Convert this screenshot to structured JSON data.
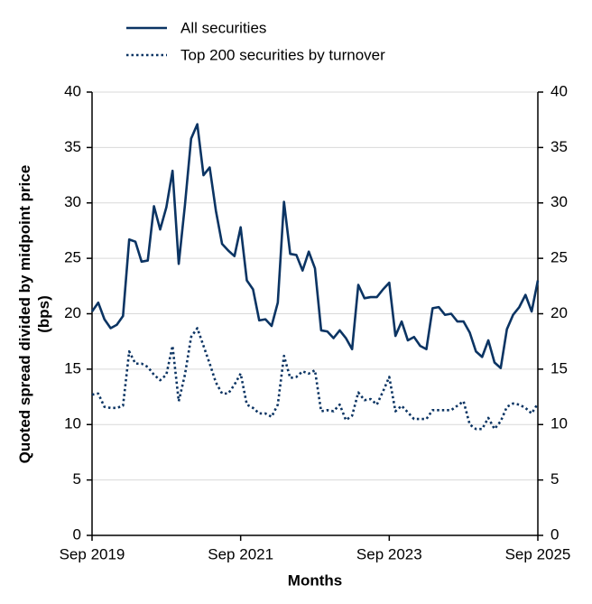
{
  "chart_data": {
    "type": "line",
    "x_label": "Months",
    "y_label": "Quoted spread divided by midpoint price (bps)",
    "categories": [
      "Sep 2019",
      null,
      null,
      null,
      null,
      null,
      null,
      null,
      null,
      null,
      null,
      null,
      null,
      null,
      null,
      null,
      null,
      null,
      null,
      null,
      null,
      null,
      null,
      null,
      "Sep 2021",
      null,
      null,
      null,
      null,
      null,
      null,
      null,
      null,
      null,
      null,
      null,
      null,
      null,
      null,
      null,
      null,
      null,
      null,
      null,
      null,
      null,
      null,
      null,
      "Sep 2023",
      null,
      null,
      null,
      null,
      null,
      null,
      null,
      null,
      null,
      null,
      null,
      null,
      null,
      null,
      null,
      null,
      null,
      null,
      null,
      null,
      null,
      null,
      null,
      "Sep 2025"
    ],
    "series": [
      {
        "name": "All securities",
        "color": "#0b3463",
        "line_style": "solid",
        "values": [
          20.2,
          21.0,
          19.5,
          18.7,
          19.0,
          19.8,
          26.7,
          26.5,
          24.7,
          24.8,
          29.7,
          27.6,
          29.6,
          32.9,
          24.5,
          29.8,
          35.8,
          37.1,
          32.5,
          33.2,
          29.3,
          26.3,
          25.7,
          25.2,
          27.8,
          23.0,
          22.2,
          19.4,
          19.5,
          18.9,
          21.0,
          30.1,
          25.4,
          25.3,
          23.9,
          25.6,
          24.1,
          18.5,
          18.4,
          17.8,
          18.5,
          17.8,
          16.8,
          22.6,
          21.4,
          21.5,
          21.5,
          22.2,
          22.8,
          18.0,
          19.3,
          17.6,
          17.9,
          17.1,
          16.8,
          20.5,
          20.6,
          19.9,
          20.0,
          19.3,
          19.3,
          18.3,
          16.6,
          16.1,
          17.6,
          15.6,
          15.1,
          18.6,
          19.9,
          20.6,
          21.7,
          20.2,
          23.0
        ]
      },
      {
        "name": "Top 200 securities by turnover",
        "color": "#0b3463",
        "line_style": "dotted",
        "values": [
          12.7,
          12.8,
          11.6,
          11.5,
          11.5,
          11.7,
          16.6,
          15.5,
          15.5,
          15.2,
          14.5,
          14.0,
          14.5,
          17.1,
          12.1,
          14.5,
          17.9,
          18.7,
          17.1,
          15.5,
          13.8,
          12.8,
          12.8,
          13.6,
          14.6,
          11.8,
          11.5,
          11.0,
          11.0,
          10.7,
          11.8,
          16.2,
          14.2,
          14.3,
          14.8,
          14.6,
          14.9,
          11.2,
          11.3,
          11.2,
          11.8,
          10.4,
          10.8,
          12.9,
          12.2,
          12.3,
          11.8,
          13.0,
          14.3,
          11.2,
          11.7,
          11.1,
          10.5,
          10.5,
          10.5,
          11.3,
          11.3,
          11.3,
          11.3,
          11.7,
          12.1,
          10.0,
          9.6,
          9.6,
          10.6,
          9.6,
          10.3,
          11.6,
          11.9,
          11.8,
          11.5,
          11.0,
          11.9
        ]
      }
    ],
    "ylim": [
      0,
      40
    ],
    "yticks": [
      0,
      5,
      10,
      15,
      20,
      25,
      30,
      35,
      40
    ],
    "y2lim": [
      0,
      40
    ],
    "y2ticks": [
      0,
      5,
      10,
      15,
      20,
      25,
      30,
      35,
      40
    ],
    "grid": true,
    "legend": "top"
  }
}
